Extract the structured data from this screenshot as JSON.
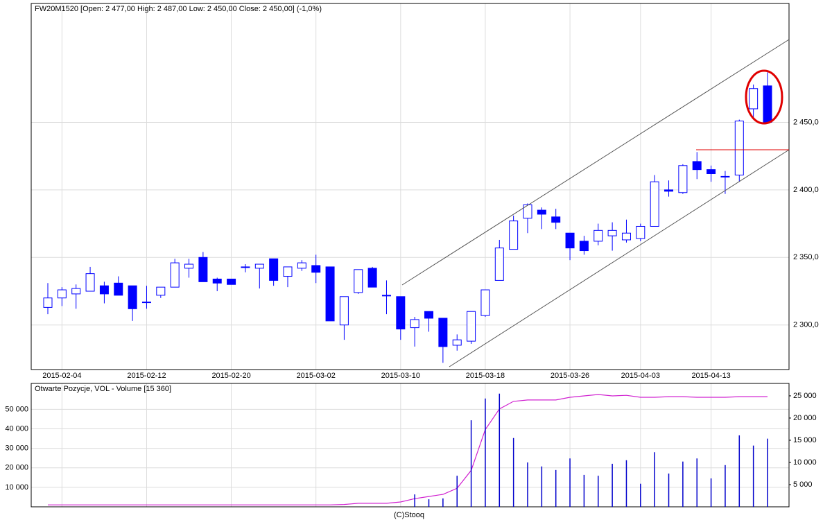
{
  "chart_data": [
    {
      "type": "candlestick",
      "title": "FW20M1520 [Open: 2 477,00  High: 2 487,00  Low: 2 450,00  Close: 2 450,00] (-1,0%)",
      "categories": [
        null,
        "2015-02-04",
        null,
        null,
        null,
        null,
        null,
        "2015-02-12",
        null,
        null,
        null,
        null,
        null,
        "2015-02-20",
        null,
        null,
        null,
        null,
        null,
        "2015-03-02",
        null,
        null,
        null,
        null,
        null,
        "2015-03-10",
        null,
        null,
        null,
        null,
        null,
        "2015-03-18",
        null,
        null,
        null,
        null,
        null,
        "2015-03-26",
        null,
        null,
        null,
        null,
        "2015-04-03",
        null,
        null,
        null,
        null,
        "2015-04-13",
        null,
        null,
        null,
        null
      ],
      "open": [
        2313,
        2320,
        2323,
        2325,
        2329,
        2331,
        2329,
        2317,
        2322,
        2328,
        2342,
        2350,
        2334,
        2334,
        2343,
        2342,
        2349,
        2336,
        2342,
        2344,
        2343,
        2300,
        2324,
        2342,
        2322,
        2321,
        2298,
        2310,
        2305,
        2285,
        2288,
        2307,
        2333,
        2356,
        2379,
        2385,
        2380,
        2368,
        2362,
        2362,
        2366,
        2363,
        2364,
        2373,
        2400,
        2398,
        2421,
        2415,
        2410,
        2411,
        2460,
        2477
      ],
      "high": [
        2331,
        2328,
        2330,
        2343,
        2332,
        2336,
        2329,
        2329,
        2328,
        2349,
        2349,
        2354,
        2335,
        2334,
        2345,
        2345,
        2349,
        2343,
        2348,
        2352,
        2343,
        2321,
        2341,
        2343,
        2333,
        2321,
        2306,
        2310,
        2305,
        2293,
        2310,
        2326,
        2363,
        2381,
        2390,
        2387,
        2386,
        2368,
        2366,
        2375,
        2376,
        2378,
        2375,
        2411,
        2407,
        2419,
        2428,
        2418,
        2414,
        2452,
        2478,
        2487
      ],
      "low": [
        2308,
        2314,
        2312,
        2325,
        2316,
        2322,
        2303,
        2312,
        2320,
        2328,
        2335,
        2332,
        2325,
        2330,
        2339,
        2327,
        2329,
        2328,
        2340,
        2331,
        2303,
        2289,
        2323,
        2328,
        2308,
        2289,
        2284,
        2295,
        2272,
        2281,
        2286,
        2306,
        2333,
        2356,
        2368,
        2371,
        2371,
        2348,
        2352,
        2359,
        2355,
        2361,
        2362,
        2373,
        2395,
        2397,
        2408,
        2406,
        2397,
        2406,
        2453,
        2450
      ],
      "close": [
        2320,
        2326,
        2327,
        2338,
        2323,
        2322,
        2312,
        2317,
        2328,
        2346,
        2345,
        2332,
        2331,
        2330,
        2343,
        2345,
        2333,
        2343,
        2346,
        2339,
        2303,
        2321,
        2341,
        2328,
        2322,
        2297,
        2304,
        2305,
        2284,
        2289,
        2310,
        2326,
        2357,
        2377,
        2389,
        2382,
        2376,
        2357,
        2355,
        2370,
        2370,
        2368,
        2373,
        2406,
        2399,
        2418,
        2415,
        2412,
        2410,
        2451,
        2475,
        2450
      ],
      "color": "#0000ff",
      "ylim": [
        2267,
        2538
      ],
      "yticks": [
        {
          "value": 2300,
          "label": "2 300,0"
        },
        {
          "value": 2350,
          "label": "2 350,0"
        },
        {
          "value": 2400,
          "label": "2 400,0"
        },
        {
          "value": 2450,
          "label": "2 450,0"
        }
      ],
      "grid": true
    },
    {
      "type": "volume",
      "title": "Otwarte Pozycje, VOL - Volume [15 360]",
      "series": [
        {
          "color": "#d020d0",
          "axis": "y",
          "values": [
            1000,
            1000,
            1000,
            1000,
            1000,
            1000,
            1000,
            1000,
            1000,
            1000,
            1000,
            1000,
            1000,
            1000,
            1000,
            1000,
            1000,
            1000,
            1000,
            1000,
            1000,
            1200,
            1800,
            1800,
            1800,
            2500,
            4200,
            5300,
            6400,
            9500,
            18700,
            39600,
            50200,
            54100,
            54800,
            54800,
            54800,
            56200,
            56900,
            57600,
            56900,
            57200,
            56200,
            56200,
            56500,
            56500,
            56200,
            56200,
            56200,
            56500,
            56500,
            56500
          ]
        },
        {
          "color": "#0000cc",
          "axis": "y2",
          "values": [
            0,
            0,
            0,
            0,
            0,
            0,
            0,
            0,
            0,
            0,
            0,
            0,
            0,
            0,
            0,
            0,
            0,
            0,
            0,
            0,
            0,
            0,
            0,
            0,
            0,
            0,
            2800,
            1700,
            1900,
            7000,
            19500,
            24400,
            25500,
            15500,
            10000,
            9100,
            8300,
            10900,
            7200,
            7000,
            9700,
            10500,
            5200,
            12300,
            7500,
            10200,
            10900,
            6400,
            9400,
            16100,
            13800,
            15360
          ]
        }
      ],
      "ylim": [
        0,
        63300
      ],
      "yticks": [
        {
          "value": 10000,
          "label": "10 000"
        },
        {
          "value": 20000,
          "label": "20 000"
        },
        {
          "value": 30000,
          "label": "30 000"
        },
        {
          "value": 40000,
          "label": "40 000"
        },
        {
          "value": 50000,
          "label": "50 000"
        }
      ],
      "y2lim": [
        0,
        27800
      ],
      "y2ticks": [
        {
          "value": 5000,
          "label": "5 000"
        },
        {
          "value": 10000,
          "label": "10 000"
        },
        {
          "value": 15000,
          "label": "15 000"
        },
        {
          "value": 20000,
          "label": "20 000"
        },
        {
          "value": 25000,
          "label": "25 000"
        }
      ],
      "grid": true,
      "footer": "(C)Stooq"
    }
  ]
}
